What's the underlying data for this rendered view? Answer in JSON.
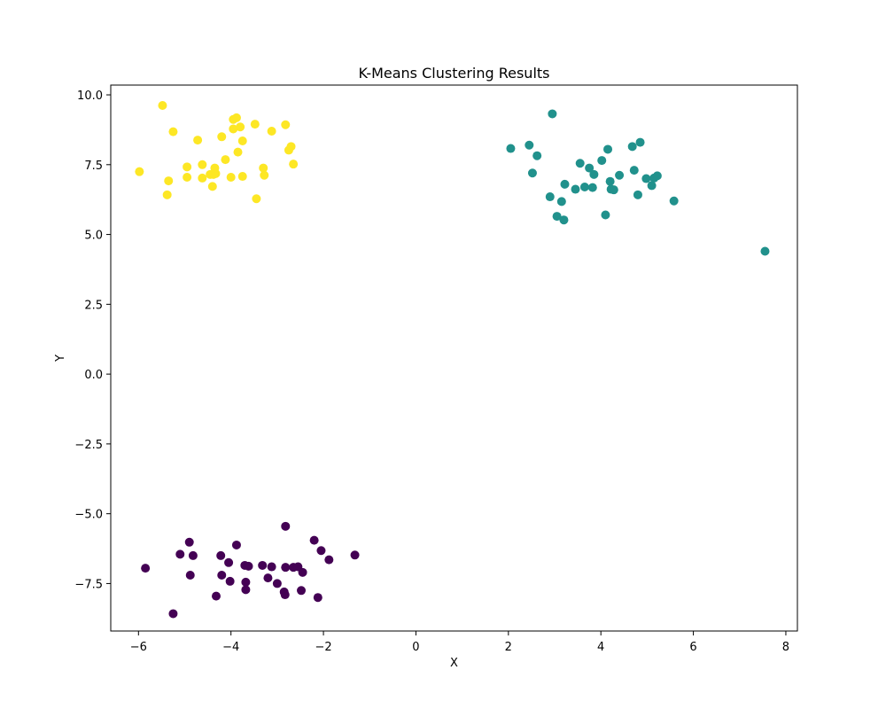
{
  "chart_data": {
    "type": "scatter",
    "title": "K-Means Clustering Results",
    "xlabel": "X",
    "ylabel": "Y",
    "xlim": [
      -6.6,
      8.25
    ],
    "ylim": [
      -9.2,
      10.35
    ],
    "xticks": [
      -6,
      -4,
      -2,
      0,
      2,
      4,
      6,
      8
    ],
    "yticks": [
      -7.5,
      -5.0,
      -2.5,
      0.0,
      2.5,
      5.0,
      7.5,
      10.0
    ],
    "xtick_labels": [
      "−6",
      "−4",
      "−2",
      "0",
      "2",
      "4",
      "6",
      "8"
    ],
    "ytick_labels": [
      "−7.5",
      "−5.0",
      "−2.5",
      "0.0",
      "2.5",
      "5.0",
      "7.5",
      "10.0"
    ],
    "grid": false,
    "series": [
      {
        "color": "#fde725",
        "x": [
          -5.98,
          -5.48,
          -5.25,
          -5.35,
          -5.38,
          -4.95,
          -4.95,
          -4.72,
          -4.62,
          -4.62,
          -4.45,
          -4.38,
          -4.35,
          -4.33,
          -4.4,
          -4.2,
          -4.12,
          -4.0,
          -3.95,
          -3.95,
          -3.88,
          -3.85,
          -3.8,
          -3.75,
          -3.75,
          -3.45,
          -3.48,
          -3.3,
          -3.28,
          -3.12,
          -2.82,
          -2.75,
          -2.7,
          -2.65
        ],
        "y": [
          7.25,
          9.62,
          8.68,
          6.92,
          6.42,
          7.42,
          7.05,
          8.38,
          7.5,
          7.02,
          7.15,
          7.15,
          7.38,
          7.18,
          6.72,
          8.5,
          7.68,
          7.05,
          9.12,
          8.78,
          9.18,
          7.95,
          8.85,
          8.35,
          7.08,
          6.28,
          8.95,
          7.38,
          7.12,
          8.7,
          8.93,
          8.02,
          8.15,
          7.52
        ]
      },
      {
        "color": "#21918c",
        "x": [
          2.05,
          2.45,
          2.52,
          2.62,
          2.9,
          2.95,
          3.05,
          3.15,
          3.2,
          3.22,
          3.45,
          3.55,
          3.65,
          3.75,
          3.82,
          3.85,
          4.02,
          4.1,
          4.15,
          4.2,
          4.22,
          4.28,
          4.4,
          4.68,
          4.72,
          4.8,
          4.85,
          4.98,
          5.1,
          5.15,
          5.22,
          5.58,
          7.55
        ],
        "y": [
          8.08,
          8.2,
          7.2,
          7.82,
          6.35,
          9.32,
          5.65,
          6.18,
          5.52,
          6.8,
          6.62,
          7.55,
          6.7,
          7.38,
          6.68,
          7.15,
          7.65,
          5.7,
          8.05,
          6.9,
          6.62,
          6.6,
          7.12,
          8.15,
          7.3,
          6.42,
          8.3,
          7.0,
          6.75,
          7.02,
          7.1,
          6.2,
          4.4
        ]
      },
      {
        "color": "#440154",
        "x": [
          -5.85,
          -5.25,
          -5.1,
          -4.9,
          -4.88,
          -4.82,
          -4.32,
          -4.22,
          -4.2,
          -4.05,
          -4.02,
          -3.88,
          -3.7,
          -3.68,
          -3.68,
          -3.62,
          -3.32,
          -3.2,
          -3.12,
          -3.0,
          -2.85,
          -2.83,
          -2.82,
          -2.82,
          -2.65,
          -2.55,
          -2.48,
          -2.45,
          -2.2,
          -2.12,
          -2.05,
          -1.88,
          -1.32
        ],
        "y": [
          -6.95,
          -8.58,
          -6.45,
          -6.02,
          -7.2,
          -6.5,
          -7.95,
          -6.5,
          -7.2,
          -6.75,
          -7.42,
          -6.12,
          -6.85,
          -7.45,
          -7.72,
          -6.88,
          -6.85,
          -7.3,
          -6.9,
          -7.5,
          -7.8,
          -7.9,
          -6.92,
          -5.45,
          -6.92,
          -6.9,
          -7.75,
          -7.1,
          -5.95,
          -8.0,
          -6.32,
          -6.65,
          -6.48
        ]
      }
    ]
  }
}
